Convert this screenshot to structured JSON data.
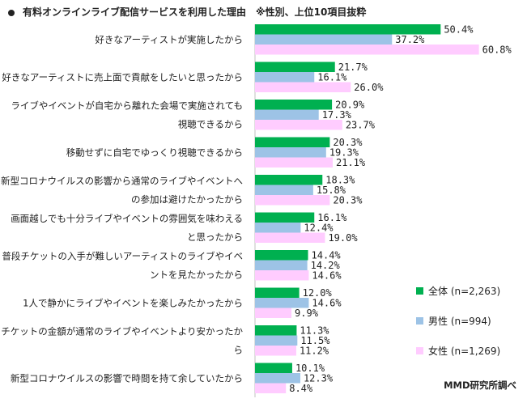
{
  "title": "有料オンラインライブ配信サービスを利用した理由",
  "note": "※性別、上位10項目抜粋",
  "source": "MMD研究所調べ",
  "colors": {
    "total": "#00b050",
    "male": "#9dc3e6",
    "female": "#ffccff"
  },
  "legend": [
    {
      "key": "total",
      "label": "全体 (n=2,263)"
    },
    {
      "key": "male",
      "label": "男性 (n=994)"
    },
    {
      "key": "female",
      "label": "女性 (n=1,269)"
    }
  ],
  "chart_data": {
    "type": "bar",
    "orientation": "horizontal",
    "categories": [
      [
        "好きなアーティストが実施したから"
      ],
      [
        "好きなアーティストに売上面で貢献をしたいと思ったから"
      ],
      [
        "ライブやイベントが自宅から離れた会場で実施されても",
        "視聴できるから"
      ],
      [
        "移動せずに自宅でゆっくり視聴できるから"
      ],
      [
        "新型コロナウイルスの影響から通常のライブやイベントへ",
        "の参加は避けたかったから"
      ],
      [
        "画面越しでも十分ライブやイベントの雰囲気を味わえる",
        "と思ったから"
      ],
      [
        "普段チケットの入手が難しいアーティストのライブやイベ",
        "ントを見たかったから"
      ],
      [
        "1人で静かにライブやイベントを楽しみたかったから"
      ],
      [
        "チケットの金額が通常のライブやイベントより安かったか",
        "ら"
      ],
      [
        "新型コロナウイルスの影響で時間を持て余していたから"
      ]
    ],
    "series": [
      {
        "name": "全体 (n=2,263)",
        "key": "total",
        "values": [
          50.4,
          21.7,
          20.9,
          20.3,
          18.3,
          16.1,
          14.4,
          12.0,
          11.3,
          10.1
        ]
      },
      {
        "name": "男性 (n=994)",
        "key": "male",
        "values": [
          37.2,
          16.1,
          17.3,
          19.3,
          15.8,
          12.4,
          14.2,
          14.6,
          11.5,
          12.3
        ]
      },
      {
        "name": "女性 (n=1,269)",
        "key": "female",
        "values": [
          60.8,
          26.0,
          23.7,
          21.1,
          20.3,
          19.0,
          14.6,
          9.9,
          11.2,
          8.4
        ]
      }
    ],
    "value_suffix": "%",
    "xlim": [
      0,
      100
    ],
    "grid": false
  }
}
